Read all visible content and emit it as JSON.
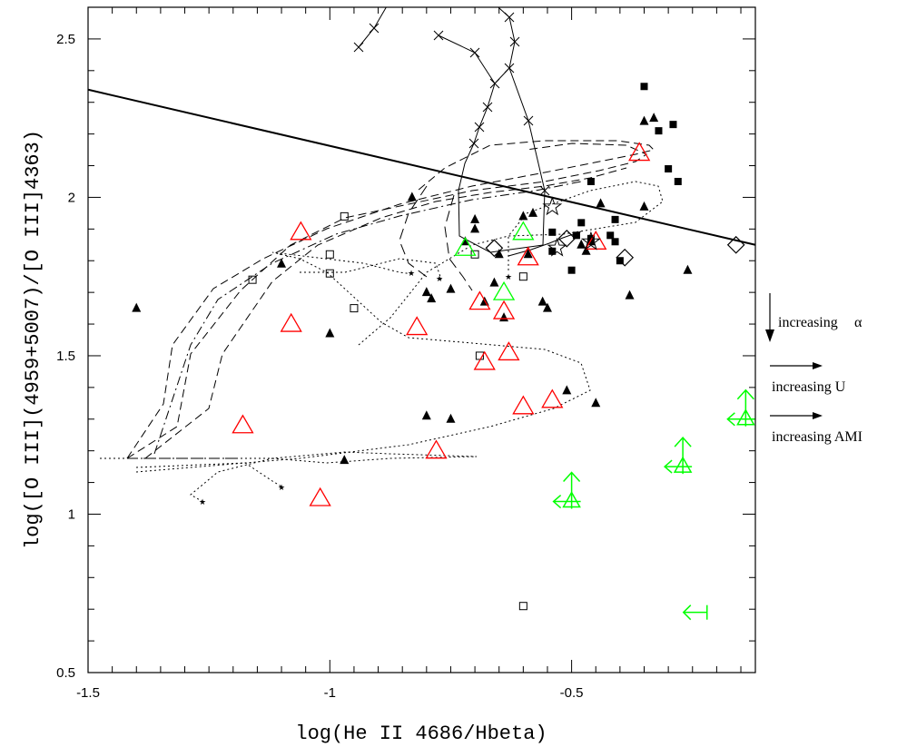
{
  "chart_data": {
    "type": "scatter",
    "xlabel": "log(He II 4686/Hbeta)",
    "ylabel": "log([O III](4959+5007)/[O III]4363)",
    "xlim": [
      -1.5,
      -0.12
    ],
    "ylim": [
      0.5,
      2.6
    ],
    "xticks": [
      {
        "v": -1.5,
        "t": "-1.5"
      },
      {
        "v": -1.0,
        "t": "-1"
      },
      {
        "v": -0.5,
        "t": "-0.5"
      }
    ],
    "yticks": [
      {
        "v": 0.5,
        "t": "0.5"
      },
      {
        "v": 1.0,
        "t": "1"
      },
      {
        "v": 1.5,
        "t": "1.5"
      },
      {
        "v": 2.0,
        "t": "2"
      },
      {
        "v": 2.5,
        "t": "2.5"
      }
    ],
    "annotations": [
      {
        "text": "increasing",
        "symbol": "α",
        "arrow": "down"
      },
      {
        "text": "increasing U",
        "arrow": "right"
      },
      {
        "text": "increasing AMI",
        "arrow": "right"
      }
    ],
    "boundary_line": [
      [
        -1.5,
        2.34
      ],
      [
        -0.12,
        1.85
      ]
    ],
    "series": [
      {
        "marker": "filled-triangle",
        "color": "#000000",
        "points": [
          [
            -1.4,
            1.65
          ],
          [
            -1.1,
            1.79
          ],
          [
            -1.0,
            1.57
          ],
          [
            -0.83,
            2.0
          ],
          [
            -0.8,
            1.7
          ],
          [
            -0.79,
            1.68
          ],
          [
            -0.75,
            1.71
          ],
          [
            -0.72,
            1.86
          ],
          [
            -0.7,
            1.93
          ],
          [
            -0.7,
            1.9
          ],
          [
            -0.68,
            1.67
          ],
          [
            -0.66,
            1.73
          ],
          [
            -0.65,
            1.82
          ],
          [
            -0.64,
            1.62
          ],
          [
            -0.6,
            1.94
          ],
          [
            -0.58,
            1.95
          ],
          [
            -0.59,
            1.82
          ],
          [
            -0.56,
            1.67
          ],
          [
            -0.55,
            1.65
          ],
          [
            -0.48,
            1.85
          ],
          [
            -0.47,
            1.83
          ],
          [
            -0.46,
            1.86
          ],
          [
            -0.44,
            1.98
          ],
          [
            -0.38,
            1.69
          ],
          [
            -0.35,
            1.97
          ],
          [
            -0.35,
            2.24
          ],
          [
            -0.33,
            2.25
          ],
          [
            -0.26,
            1.77
          ],
          [
            -0.8,
            1.31
          ],
          [
            -0.75,
            1.3
          ],
          [
            -0.51,
            1.39
          ],
          [
            -0.45,
            1.35
          ],
          [
            -0.97,
            1.17
          ]
        ]
      },
      {
        "marker": "filled-square",
        "color": "#000000",
        "points": [
          [
            -0.54,
            1.83
          ],
          [
            -0.54,
            1.89
          ],
          [
            -0.5,
            1.77
          ],
          [
            -0.49,
            1.88
          ],
          [
            -0.48,
            1.92
          ],
          [
            -0.46,
            1.87
          ],
          [
            -0.46,
            2.05
          ],
          [
            -0.42,
            1.88
          ],
          [
            -0.41,
            1.93
          ],
          [
            -0.41,
            1.86
          ],
          [
            -0.4,
            1.8
          ],
          [
            -0.35,
            2.35
          ],
          [
            -0.32,
            2.21
          ],
          [
            -0.3,
            2.09
          ],
          [
            -0.29,
            2.23
          ],
          [
            -0.28,
            2.05
          ]
        ]
      },
      {
        "marker": "open-square",
        "color": "#000000",
        "points": [
          [
            -1.16,
            1.74
          ],
          [
            -1.0,
            1.82
          ],
          [
            -1.0,
            1.76
          ],
          [
            -0.97,
            1.94
          ],
          [
            -0.95,
            1.65
          ],
          [
            -0.7,
            1.82
          ],
          [
            -0.69,
            1.5
          ],
          [
            -0.6,
            1.75
          ],
          [
            -0.6,
            0.71
          ]
        ]
      },
      {
        "marker": "open-triangle",
        "color": "#ff0000",
        "points": [
          [
            -1.06,
            1.89
          ],
          [
            -1.08,
            1.6
          ],
          [
            -1.18,
            1.28
          ],
          [
            -1.02,
            1.05
          ],
          [
            -0.82,
            1.59
          ],
          [
            -0.78,
            1.2
          ],
          [
            -0.69,
            1.67
          ],
          [
            -0.68,
            1.48
          ],
          [
            -0.64,
            1.64
          ],
          [
            -0.63,
            1.51
          ],
          [
            -0.59,
            1.81
          ],
          [
            -0.6,
            1.34
          ],
          [
            -0.54,
            1.36
          ],
          [
            -0.45,
            1.86
          ],
          [
            -0.36,
            2.14
          ]
        ]
      },
      {
        "marker": "open-triangle",
        "color": "#00ff00",
        "points": [
          [
            -0.72,
            1.84
          ],
          [
            -0.64,
            1.7
          ],
          [
            -0.6,
            1.89
          ]
        ]
      },
      {
        "marker": "open-diamond",
        "color": "#000000",
        "points": [
          [
            -0.66,
            1.84
          ],
          [
            -0.51,
            1.87
          ],
          [
            -0.39,
            1.81
          ],
          [
            -0.16,
            1.85
          ]
        ]
      },
      {
        "marker": "open-star",
        "color": "#000000",
        "points": [
          [
            -0.54,
            1.97
          ],
          [
            -0.53,
            1.84
          ],
          [
            -0.46,
            1.86
          ]
        ]
      },
      {
        "marker": "limit-arrow-triangle",
        "color": "#00ff00",
        "points": [
          [
            -0.5,
            1.04
          ],
          [
            -0.27,
            1.15
          ],
          [
            -0.14,
            1.3
          ]
        ]
      },
      {
        "marker": "limit-arrow-bar",
        "color": "#00ff00",
        "points": [
          [
            -0.25,
            0.69
          ]
        ]
      }
    ]
  }
}
